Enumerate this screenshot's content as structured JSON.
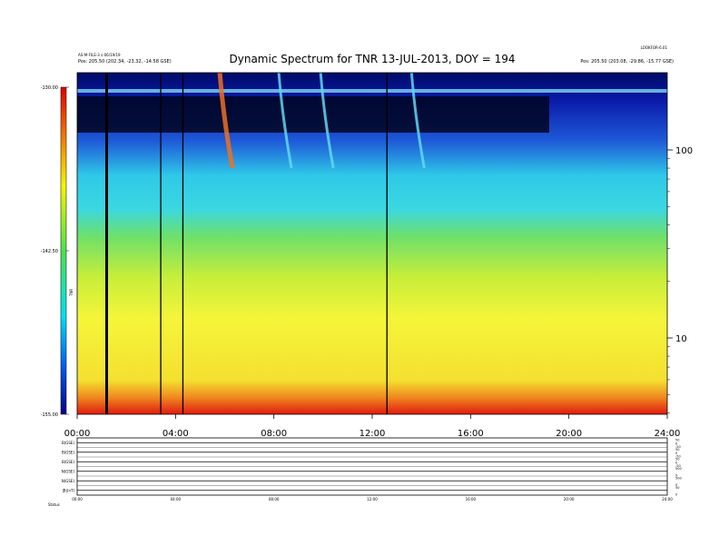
{
  "chart_data": {
    "type": "heatmap",
    "title": "Dynamic Spectrum for TNR 13-JUL-2013, DOY = 194",
    "header_left": [
      "AS-M-FILE-3 s-06/19/19",
      "Pos:  205.50 (202.34, -23.32, -14.58 GSE)"
    ],
    "header_right": [
      "LOOKFOR-6.01",
      "Pos:  205.50 (203.08, -29.86, -15.77 GSE)"
    ],
    "x_ticks": [
      "00:00",
      "04:00",
      "08:00",
      "12:00",
      "16:00",
      "20:00",
      "24:00"
    ],
    "x_range_hours": [
      0,
      24
    ],
    "colorbar": {
      "ticks": [
        "-130.00",
        "-142.50",
        "-155.00"
      ],
      "range": [
        -155,
        -130
      ],
      "label": "TNR"
    },
    "y_right_ticks": [
      "100",
      "10"
    ],
    "y_right_scale": "log",
    "data_gap_hours": [
      1.2,
      3.4,
      4.3,
      12.6
    ],
    "type_iii_bursts_hours": [
      5.8,
      8.2,
      9.9,
      13.6
    ],
    "lower_panel": {
      "rows": [
        {
          "label": "B(GSE)",
          "scale": [
            "50",
            "0",
            "-50"
          ]
        },
        {
          "label": "B(GSE)",
          "scale": [
            "50",
            "0",
            "-50"
          ]
        },
        {
          "label": "B(GSE)",
          "scale": [
            "50",
            "0",
            "-50"
          ]
        },
        {
          "label": "N(GSE)",
          "scale": [
            "500",
            "0"
          ]
        },
        {
          "label": "N(GSE)",
          "scale": [
            "500",
            "0"
          ]
        },
        {
          "label": "|B|(nT)",
          "scale": [
            "50",
            "0"
          ]
        }
      ],
      "x_ticks": [
        "00:00",
        "04:00",
        "08:00",
        "12:00",
        "16:00",
        "20:00",
        "24:00"
      ],
      "footer": "Status"
    }
  }
}
